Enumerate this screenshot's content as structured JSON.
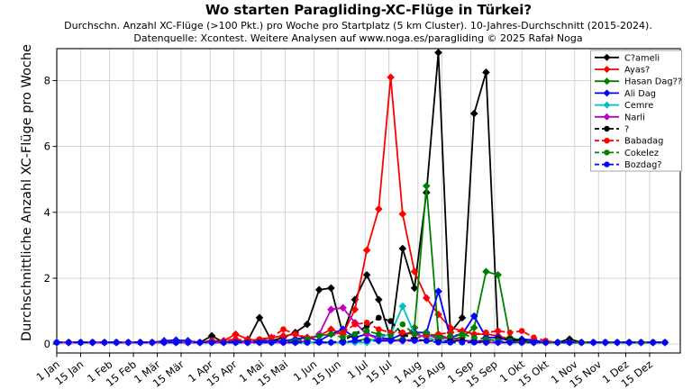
{
  "header": {
    "title": "Wo starten Paragliding-XC-Flüge in Türkei?",
    "subtitle1": "Durchschn. Anzahl XC-Flüge (>100 Pkt.) pro Woche pro Startplatz (5 km Cluster). 10-Jahres-Durchschnitt (2015-2024).",
    "subtitle2": "Datenquelle: Xcontest. Weitere Analysen auf www.noga.es/paragliding © 2025 Rafał Noga"
  },
  "chart_data": {
    "type": "line",
    "title": "Wo starten Paragliding-XC-Flüge in Türkei?",
    "xlabel": "",
    "ylabel": "Durchschnittliche Anzahl XC-Flüge pro Woche",
    "ylim": [
      -0.27,
      8.97
    ],
    "yticks": [
      0,
      2,
      4,
      6,
      8
    ],
    "grid": true,
    "legend_position": "upper right",
    "x_unit": "week_of_year",
    "weeks": 52,
    "xticks": [
      {
        "label": "1 Jan",
        "day": 0
      },
      {
        "label": "15 Jan",
        "day": 14
      },
      {
        "label": "1 Feb",
        "day": 31
      },
      {
        "label": "15 Feb",
        "day": 45
      },
      {
        "label": "1 Mär",
        "day": 59
      },
      {
        "label": "15 Mär",
        "day": 73
      },
      {
        "label": "1 Apr",
        "day": 90
      },
      {
        "label": "15 Apr",
        "day": 104
      },
      {
        "label": "1 Mai",
        "day": 120
      },
      {
        "label": "15 Mai",
        "day": 134
      },
      {
        "label": "1 Jun",
        "day": 151
      },
      {
        "label": "15 Jun",
        "day": 165
      },
      {
        "label": "1 Jul",
        "day": 181
      },
      {
        "label": "15 Jul",
        "day": 195
      },
      {
        "label": "1 Aug",
        "day": 212
      },
      {
        "label": "15 Aug",
        "day": 226
      },
      {
        "label": "1 Sep",
        "day": 243
      },
      {
        "label": "15 Sep",
        "day": 257
      },
      {
        "label": "1 Okt",
        "day": 273
      },
      {
        "label": "15 Okt",
        "day": 287
      },
      {
        "label": "1 Nov",
        "day": 304
      },
      {
        "label": "15 Nov",
        "day": 318
      },
      {
        "label": "1 Dez",
        "day": 334
      },
      {
        "label": "15 Dez",
        "day": 348
      }
    ],
    "series": [
      {
        "name": "C?ameli",
        "color": "#000000",
        "line": "solid",
        "marker": "diamond",
        "values": [
          0.05,
          0.05,
          0.05,
          0.05,
          0.05,
          0.05,
          0.05,
          0.05,
          0.05,
          0.05,
          0.05,
          0.05,
          0.05,
          0.25,
          0.05,
          0.05,
          0.1,
          0.8,
          0.1,
          0.2,
          0.35,
          0.6,
          1.65,
          1.7,
          0.3,
          1.35,
          2.1,
          1.35,
          0.15,
          2.9,
          1.7,
          4.6,
          8.85,
          0.35,
          0.8,
          7.0,
          8.25,
          0.2,
          0.1,
          0.1,
          0.05,
          0.05,
          0.05,
          0.15,
          0.05,
          0.05,
          0.05,
          0.05,
          0.05,
          0.05,
          0.05,
          0.05
        ]
      },
      {
        "name": "Ayas?",
        "color": "#ff0000",
        "line": "solid",
        "marker": "diamond",
        "values": [
          0.05,
          0.05,
          0.05,
          0.05,
          0.05,
          0.05,
          0.05,
          0.05,
          0.05,
          0.05,
          0.05,
          0.05,
          0.05,
          0.1,
          0.1,
          0.3,
          0.15,
          0.1,
          0.2,
          0.25,
          0.3,
          0.15,
          0.25,
          0.45,
          0.3,
          1.05,
          2.85,
          4.1,
          8.1,
          3.95,
          2.2,
          1.4,
          0.9,
          0.5,
          0.4,
          0.3,
          0.3,
          0.25,
          0.15,
          0.1,
          0.1,
          0.05,
          0.05,
          0.05,
          0.05,
          0.05,
          0.05,
          0.05,
          0.05,
          0.05,
          0.05,
          0.05
        ]
      },
      {
        "name": "Hasan Dag??",
        "color": "#008000",
        "line": "solid",
        "marker": "diamond",
        "values": [
          0.05,
          0.05,
          0.05,
          0.05,
          0.05,
          0.05,
          0.05,
          0.05,
          0.05,
          0.05,
          0.05,
          0.05,
          0.05,
          0.05,
          0.05,
          0.05,
          0.05,
          0.05,
          0.05,
          0.05,
          0.05,
          0.05,
          0.05,
          0.05,
          0.05,
          0.1,
          0.15,
          0.1,
          0.1,
          0.15,
          0.5,
          4.8,
          0.3,
          0.15,
          0.2,
          0.5,
          2.2,
          2.1,
          0.2,
          0.1,
          0.05,
          0.05,
          0.05,
          0.05,
          0.05,
          0.05,
          0.05,
          0.05,
          0.05,
          0.05,
          0.05,
          0.05
        ]
      },
      {
        "name": "Ali Dag",
        "color": "#0000ff",
        "line": "solid",
        "marker": "diamond",
        "values": [
          0.05,
          0.05,
          0.05,
          0.05,
          0.05,
          0.05,
          0.05,
          0.05,
          0.05,
          0.1,
          0.12,
          0.1,
          0.05,
          0.1,
          0.05,
          0.1,
          0.05,
          0.1,
          0.1,
          0.1,
          0.15,
          0.2,
          0.1,
          0.3,
          0.45,
          0.2,
          0.3,
          0.2,
          0.15,
          0.3,
          0.35,
          0.35,
          1.6,
          0.2,
          0.3,
          0.85,
          0.2,
          0.2,
          0.1,
          0.15,
          0.12,
          0.05,
          0.05,
          0.05,
          0.05,
          0.05,
          0.05,
          0.05,
          0.05,
          0.05,
          0.05,
          0.05
        ]
      },
      {
        "name": "Cemre",
        "color": "#00bfbf",
        "line": "solid",
        "marker": "diamond",
        "values": [
          0.05,
          0.05,
          0.05,
          0.05,
          0.05,
          0.05,
          0.05,
          0.05,
          0.05,
          0.05,
          0.05,
          0.05,
          0.05,
          0.05,
          0.05,
          0.05,
          0.05,
          0.05,
          0.05,
          0.05,
          0.05,
          0.05,
          0.05,
          0.05,
          0.05,
          0.05,
          0.05,
          0.2,
          0.3,
          1.15,
          0.3,
          0.2,
          0.1,
          0.1,
          0.1,
          0.1,
          0.05,
          0.05,
          0.05,
          0.05,
          0.05,
          0.05,
          0.05,
          0.05,
          0.05,
          0.05,
          0.05,
          0.05,
          0.05,
          0.05,
          0.05,
          0.05
        ]
      },
      {
        "name": "Narli",
        "color": "#bf00bf",
        "line": "solid",
        "marker": "diamond",
        "values": [
          0.05,
          0.05,
          0.05,
          0.05,
          0.05,
          0.05,
          0.05,
          0.05,
          0.05,
          0.05,
          0.05,
          0.05,
          0.05,
          0.05,
          0.05,
          0.05,
          0.05,
          0.05,
          0.05,
          0.05,
          0.05,
          0.1,
          0.3,
          1.05,
          1.1,
          0.65,
          0.3,
          0.15,
          0.1,
          0.1,
          0.15,
          0.3,
          0.15,
          0.2,
          0.1,
          0.1,
          0.05,
          0.05,
          0.05,
          0.05,
          0.05,
          0.05,
          0.05,
          0.05,
          0.05,
          0.05,
          0.05,
          0.05,
          0.05,
          0.05,
          0.05,
          0.05
        ]
      },
      {
        "name": "?",
        "color": "#000000",
        "line": "dashed",
        "marker": "circle",
        "values": [
          0.05,
          0.05,
          0.05,
          0.05,
          0.05,
          0.05,
          0.05,
          0.05,
          0.05,
          0.05,
          0.05,
          0.05,
          0.05,
          0.05,
          0.05,
          0.05,
          0.05,
          0.05,
          0.05,
          0.05,
          0.05,
          0.05,
          0.05,
          0.05,
          0.1,
          0.3,
          0.55,
          0.8,
          0.7,
          0.3,
          0.15,
          0.1,
          0.1,
          0.1,
          0.1,
          0.1,
          0.1,
          0.15,
          0.15,
          0.1,
          0.05,
          0.05,
          0.05,
          0.05,
          0.05,
          0.05,
          0.05,
          0.05,
          0.05,
          0.05,
          0.05,
          0.05
        ]
      },
      {
        "name": "Babadag",
        "color": "#ff0000",
        "line": "dashed",
        "marker": "circle",
        "values": [
          0.05,
          0.05,
          0.05,
          0.05,
          0.05,
          0.05,
          0.05,
          0.05,
          0.05,
          0.05,
          0.05,
          0.05,
          0.05,
          0.1,
          0.1,
          0.15,
          0.1,
          0.15,
          0.2,
          0.45,
          0.3,
          0.2,
          0.25,
          0.3,
          0.35,
          0.6,
          0.65,
          0.45,
          0.35,
          0.35,
          0.3,
          0.25,
          0.3,
          0.35,
          0.4,
          0.3,
          0.35,
          0.4,
          0.35,
          0.4,
          0.2,
          0.1,
          0.05,
          0.05,
          0.05,
          0.05,
          0.05,
          0.05,
          0.05,
          0.05,
          0.05,
          0.05
        ]
      },
      {
        "name": "Cokelez",
        "color": "#008000",
        "line": "dashed",
        "marker": "circle",
        "values": [
          0.05,
          0.05,
          0.05,
          0.05,
          0.05,
          0.05,
          0.05,
          0.05,
          0.05,
          0.05,
          0.05,
          0.05,
          0.05,
          0.05,
          0.05,
          0.05,
          0.05,
          0.05,
          0.05,
          0.05,
          0.1,
          0.15,
          0.25,
          0.3,
          0.2,
          0.3,
          0.4,
          0.3,
          0.25,
          0.6,
          0.3,
          0.35,
          0.2,
          0.25,
          0.3,
          0.2,
          0.15,
          0.1,
          0.1,
          0.05,
          0.05,
          0.05,
          0.05,
          0.05,
          0.05,
          0.05,
          0.05,
          0.05,
          0.05,
          0.05,
          0.05,
          0.05
        ]
      },
      {
        "name": "Bozdag?",
        "color": "#0000ff",
        "line": "dashed",
        "marker": "circle",
        "values": [
          0.05,
          0.05,
          0.05,
          0.05,
          0.05,
          0.05,
          0.05,
          0.05,
          0.05,
          0.05,
          0.05,
          0.05,
          0.05,
          0.05,
          0.05,
          0.05,
          0.05,
          0.05,
          0.05,
          0.05,
          0.05,
          0.05,
          0.05,
          0.05,
          0.05,
          0.1,
          0.1,
          0.1,
          0.1,
          0.1,
          0.1,
          0.1,
          0.05,
          0.05,
          0.05,
          0.05,
          0.05,
          0.05,
          0.05,
          0.05,
          0.05,
          0.05,
          0.05,
          0.05,
          0.05,
          0.05,
          0.05,
          0.05,
          0.05,
          0.05,
          0.05,
          0.05
        ]
      }
    ]
  }
}
